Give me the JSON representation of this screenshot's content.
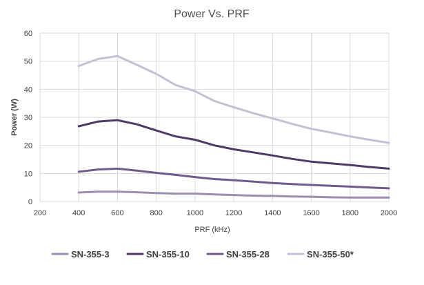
{
  "chart_data": {
    "type": "line",
    "title": "Power Vs. PRF",
    "xlabel": "PRF (kHz)",
    "ylabel": "Power (W)",
    "xlim": [
      200,
      2000
    ],
    "ylim": [
      0,
      60
    ],
    "x_ticks": [
      200,
      400,
      600,
      800,
      1000,
      1200,
      1400,
      1600,
      1800,
      2000
    ],
    "y_ticks": [
      0,
      10,
      20,
      30,
      40,
      50,
      60
    ],
    "grid": true,
    "legend_position": "bottom",
    "series": [
      {
        "name": "SN-355-3",
        "color": "#9b8eb0",
        "x": [
          400,
          500,
          600,
          700,
          800,
          900,
          1000,
          1100,
          1200,
          1300,
          1400,
          1500,
          1600,
          1700,
          1800,
          1900,
          2000
        ],
        "values": [
          3.2,
          3.5,
          3.5,
          3.3,
          3.0,
          2.8,
          2.8,
          2.5,
          2.3,
          2.1,
          2.0,
          1.8,
          1.7,
          1.5,
          1.4,
          1.4,
          1.4
        ]
      },
      {
        "name": "SN-355-10",
        "color": "#4e3a66",
        "x": [
          400,
          500,
          600,
          700,
          800,
          900,
          1000,
          1100,
          1200,
          1300,
          1400,
          1500,
          1600,
          1700,
          1800,
          1900,
          2000
        ],
        "values": [
          26.8,
          28.5,
          29.0,
          27.5,
          25.3,
          23.2,
          22.0,
          20.0,
          18.6,
          17.5,
          16.4,
          15.2,
          14.2,
          13.6,
          13.0,
          12.3,
          11.7
        ]
      },
      {
        "name": "SN-355-28",
        "color": "#6f5a8c",
        "x": [
          400,
          500,
          600,
          700,
          800,
          900,
          1000,
          1100,
          1200,
          1300,
          1400,
          1500,
          1600,
          1700,
          1800,
          1900,
          2000
        ],
        "values": [
          10.6,
          11.4,
          11.7,
          11.0,
          10.2,
          9.5,
          8.7,
          8.0,
          7.6,
          7.1,
          6.6,
          6.2,
          5.9,
          5.6,
          5.3,
          5.0,
          4.7
        ]
      },
      {
        "name": "SN-355-50*",
        "color": "#c5bfd4",
        "x": [
          400,
          500,
          600,
          700,
          800,
          900,
          1000,
          1100,
          1200,
          1300,
          1400,
          1500,
          1600,
          1700,
          1800,
          1900,
          2000
        ],
        "values": [
          48.3,
          50.8,
          51.8,
          48.7,
          45.5,
          41.5,
          39.3,
          35.8,
          33.6,
          31.5,
          29.6,
          27.7,
          25.9,
          24.6,
          23.2,
          22.0,
          20.9
        ]
      }
    ]
  }
}
